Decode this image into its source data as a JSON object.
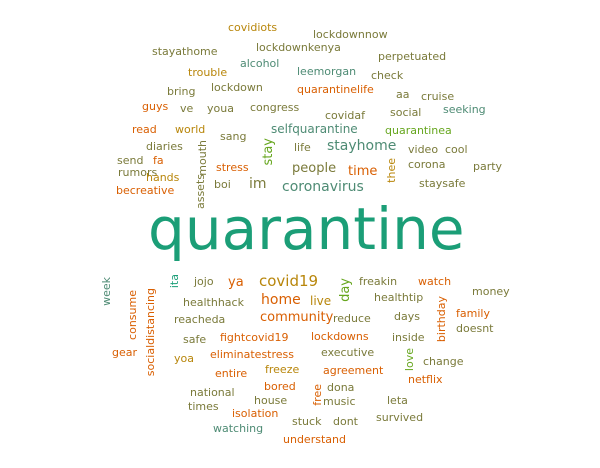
{
  "colors": {
    "teal": "#1b9e77",
    "orange": "#d95f02",
    "green": "#66a61e",
    "olive": "#7a7a3a",
    "slate_green": "#4e8b74",
    "gold": "#b8860b"
  },
  "words": [
    "covidiots",
    "lockdownnow",
    "lockdownkenya",
    "stayathome",
    "perpetuated",
    "alcohol",
    "trouble",
    "leemorgan",
    "check",
    "bring",
    "lockdown",
    "quarantinelife",
    "aa",
    "cruise",
    "guys",
    "ve",
    "youa",
    "congress",
    "covidaf",
    "social",
    "seeking",
    "read",
    "world",
    "sang",
    "selfquarantine",
    "quarantinea",
    "diaries",
    "mouth",
    "stay",
    "life",
    "stayhome",
    "video",
    "cool",
    "send",
    "fa",
    "assets",
    "thee",
    "corona",
    "party",
    "rumors",
    "hands",
    "stress",
    "people",
    "time",
    "staysafe",
    "becreative",
    "boi",
    "im",
    "coronavirus",
    "quarantine",
    "week",
    "ita",
    "jojo",
    "ya",
    "covid19",
    "day",
    "freakin",
    "watch",
    "money",
    "consume",
    "healthhack",
    "home",
    "live",
    "healthtip",
    "birthday",
    "socialdistancing",
    "reacheda",
    "community",
    "reduce",
    "days",
    "family",
    "safe",
    "fightcovid19",
    "lockdowns",
    "inside",
    "doesnt",
    "gear",
    "yoa",
    "eliminatestress",
    "executive",
    "love",
    "change",
    "entire",
    "freeze",
    "agreement",
    "netflix",
    "national",
    "bored",
    "dona",
    "times",
    "house",
    "free",
    "music",
    "leta",
    "isolation",
    "dont",
    "survived",
    "watching",
    "stuck",
    "understand"
  ]
}
